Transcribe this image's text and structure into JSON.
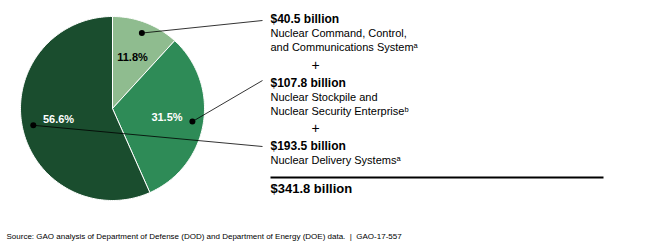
{
  "chart_data": {
    "type": "pie",
    "values": [
      11.8,
      31.5,
      56.6
    ],
    "value_labels": [
      "11.8%",
      "31.5%",
      "56.6%"
    ],
    "colors": [
      "#8fbc8f",
      "#2e8b57",
      "#1a4d2e"
    ],
    "data_labels": true,
    "annotations": [
      {
        "amount": "$40.5 billion",
        "description": [
          "Nuclear Command, Control,",
          "and Communications Systemᵃ"
        ]
      },
      {
        "amount": "$107.8 billion",
        "description": [
          "Nuclear Stockpile and",
          "Nuclear Security Enterpriseᵇ"
        ]
      },
      {
        "amount": "$193.5 billion",
        "description": [
          "Nuclear Delivery Systemsᵃ"
        ]
      }
    ],
    "plus_symbol": "+",
    "total_label": "$341.8 billion",
    "source": "Source: GAO analysis of Department of Defense (DOD) and Department of Energy (DOE) data.  |  GAO-17-557"
  }
}
